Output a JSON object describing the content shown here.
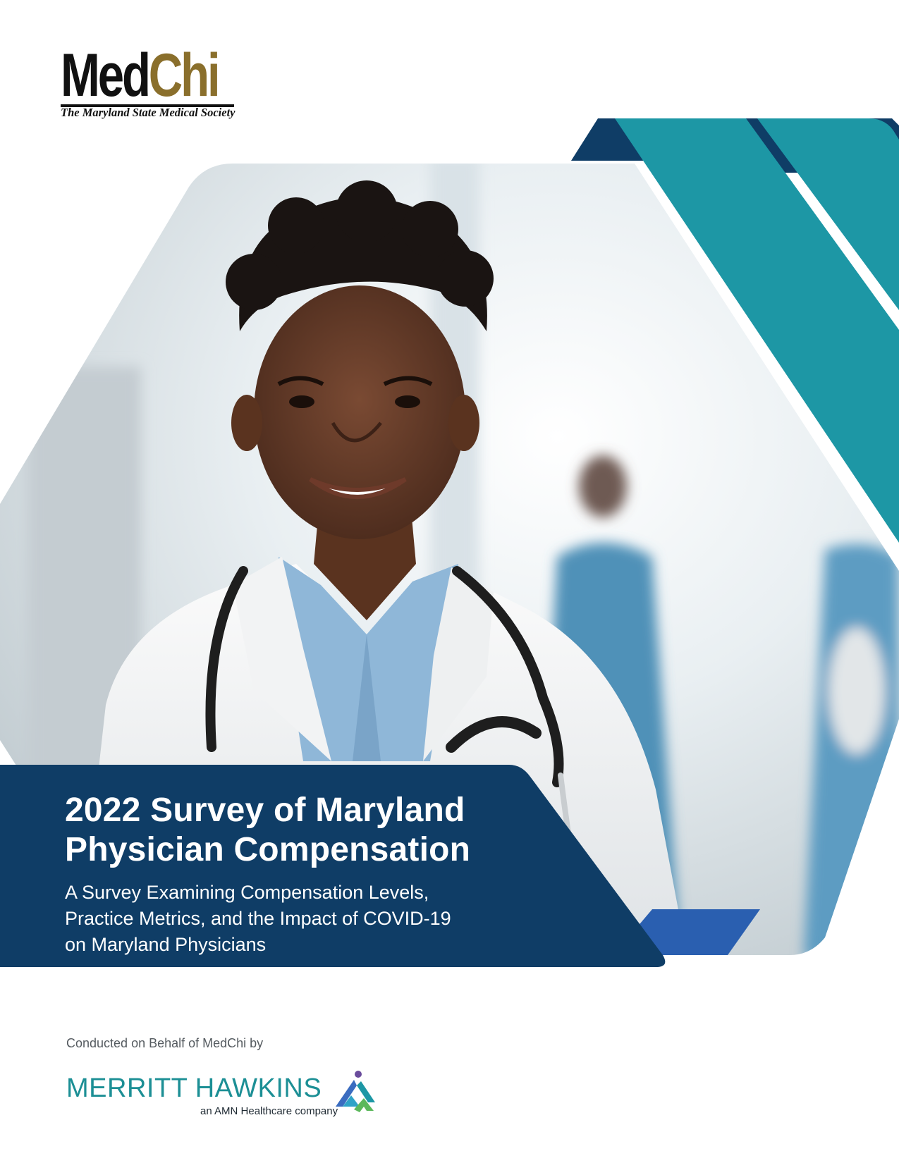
{
  "logo": {
    "name_part1": "Med",
    "name_part2": "Chi",
    "tagline": "The Maryland State Medical Society"
  },
  "cover": {
    "title_lines": [
      "2022 Survey of Maryland",
      "Physician Compensation"
    ],
    "subtitle_lines": [
      "A Survey Examining Compensation Levels,",
      "Practice Metrics, and the Impact of COVID-19",
      "on Maryland Physicians"
    ]
  },
  "footer": {
    "conducted_by": "Conducted on Behalf of MedChi by",
    "company_name": "MERRITT HAWKINS",
    "company_tagline": "an AMN Healthcare company"
  },
  "colors": {
    "navy": "#0f3d66",
    "teal": "#1d97a5",
    "blue_accent": "#2a5fb0",
    "gold": "#8a6f2c"
  },
  "icons": {
    "photo": "smiling-doctor-photo",
    "company_mark": "merritt-hawkins-mark-icon"
  }
}
